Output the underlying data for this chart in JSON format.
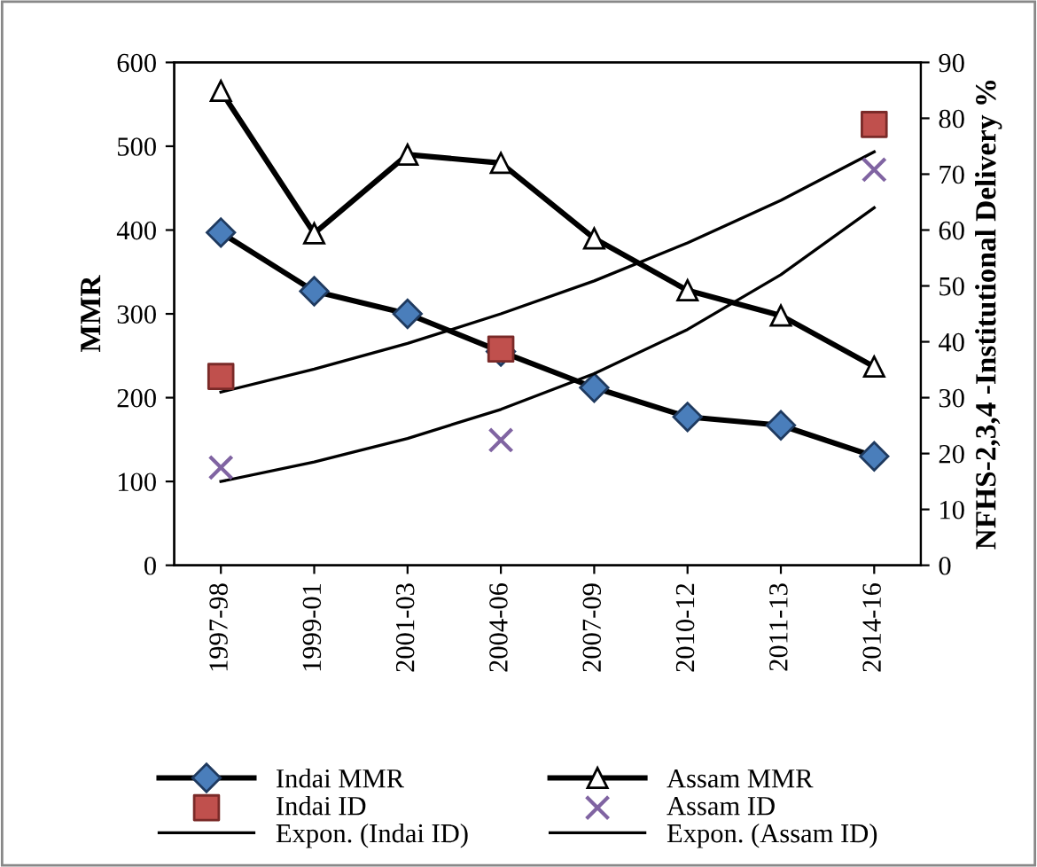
{
  "chart_data": {
    "type": "line",
    "categories": [
      "1997-98",
      "1999-01",
      "2001-03",
      "2004-06",
      "2007-09",
      "2010-12",
      "2011-13",
      "2014-16"
    ],
    "ylabel": "MMR",
    "y2label": "NFHS-2,3,4 -Institutional Delivery %",
    "ylim": [
      0,
      600
    ],
    "yticks": [
      0,
      100,
      200,
      300,
      400,
      500,
      600
    ],
    "y2lim": [
      0,
      90
    ],
    "y2ticks": [
      0,
      10,
      20,
      30,
      40,
      50,
      60,
      70,
      80,
      90
    ],
    "grid": false,
    "legend": "bottom",
    "series": [
      {
        "name": "Indai MMR",
        "marker": "diamond",
        "color": "#4a7ebb",
        "values": [
          397,
          327,
          300,
          255,
          212,
          177,
          167,
          130
        ]
      },
      {
        "name": "Assam MMR",
        "marker": "triangle",
        "color": "#000000",
        "values": [
          566,
          396,
          490,
          480,
          390,
          328,
          298,
          237
        ]
      },
      {
        "name": "Indai ID",
        "type": "scatter",
        "marker": "square",
        "color": "#c0504d",
        "axis": "y2",
        "values": [
          33.8,
          null,
          null,
          38.7,
          null,
          null,
          null,
          78.9
        ]
      },
      {
        "name": "Assam ID",
        "type": "scatter",
        "marker": "cross",
        "color": "#8064a2",
        "axis": "y2",
        "values": [
          17.5,
          null,
          null,
          22.4,
          null,
          null,
          null,
          70.8
        ]
      },
      {
        "name": "Expon. (Indai ID)",
        "marker": "none",
        "color": "#000000",
        "axis": "y2",
        "values": [
          31,
          35.1,
          39.7,
          45.0,
          50.9,
          57.7,
          65.3,
          74.0
        ]
      },
      {
        "name": "Expon. (Assam ID)",
        "marker": "none",
        "color": "#000000",
        "axis": "y2",
        "values": [
          15,
          18.5,
          22.7,
          27.9,
          34.3,
          42.2,
          52.0,
          64.0
        ]
      }
    ]
  }
}
